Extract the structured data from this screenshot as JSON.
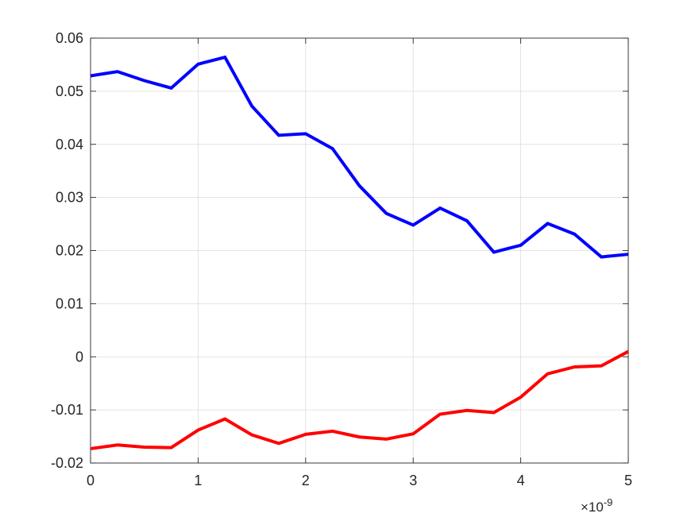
{
  "chart_data": {
    "type": "line",
    "title": "",
    "xlabel": "",
    "ylabel": "",
    "xlim": [
      0,
      5e-09
    ],
    "ylim": [
      -0.02,
      0.06
    ],
    "x_exponent_label": "×10",
    "x_exponent_power": "-9",
    "xticks": [
      0,
      1e-09,
      2e-09,
      3e-09,
      4e-09,
      5e-09
    ],
    "xtick_labels": [
      "0",
      "1",
      "2",
      "3",
      "4",
      "5"
    ],
    "yticks": [
      -0.02,
      -0.01,
      0,
      0.01,
      0.02,
      0.03,
      0.04,
      0.05,
      0.06
    ],
    "ytick_labels": [
      "-0.02",
      "-0.01",
      "0",
      "0.01",
      "0.02",
      "0.03",
      "0.04",
      "0.05",
      "0.06"
    ],
    "grid": true,
    "x": [
      0,
      2.5e-10,
      5e-10,
      7.5e-10,
      1e-09,
      1.25e-09,
      1.5e-09,
      1.75e-09,
      2e-09,
      2.25e-09,
      2.5e-09,
      2.75e-09,
      3e-09,
      3.25e-09,
      3.5e-09,
      3.75e-09,
      4e-09,
      4.25e-09,
      4.5e-09,
      4.75e-09,
      5e-09
    ],
    "series": [
      {
        "color": "#0000ff",
        "values": [
          0.0529,
          0.0537,
          0.052,
          0.0506,
          0.0551,
          0.0564,
          0.0472,
          0.0417,
          0.042,
          0.0392,
          0.0322,
          0.027,
          0.0248,
          0.028,
          0.0256,
          0.0197,
          0.021,
          0.0251,
          0.0231,
          0.0188,
          0.0193
        ]
      },
      {
        "color": "#ff0000",
        "values": [
          -0.0173,
          -0.0166,
          -0.017,
          -0.0171,
          -0.0138,
          -0.0117,
          -0.0147,
          -0.0163,
          -0.0146,
          -0.014,
          -0.0151,
          -0.0155,
          -0.0145,
          -0.0108,
          -0.0101,
          -0.0105,
          -0.0076,
          -0.0032,
          -0.0019,
          -0.0017,
          0.001
        ]
      }
    ]
  }
}
